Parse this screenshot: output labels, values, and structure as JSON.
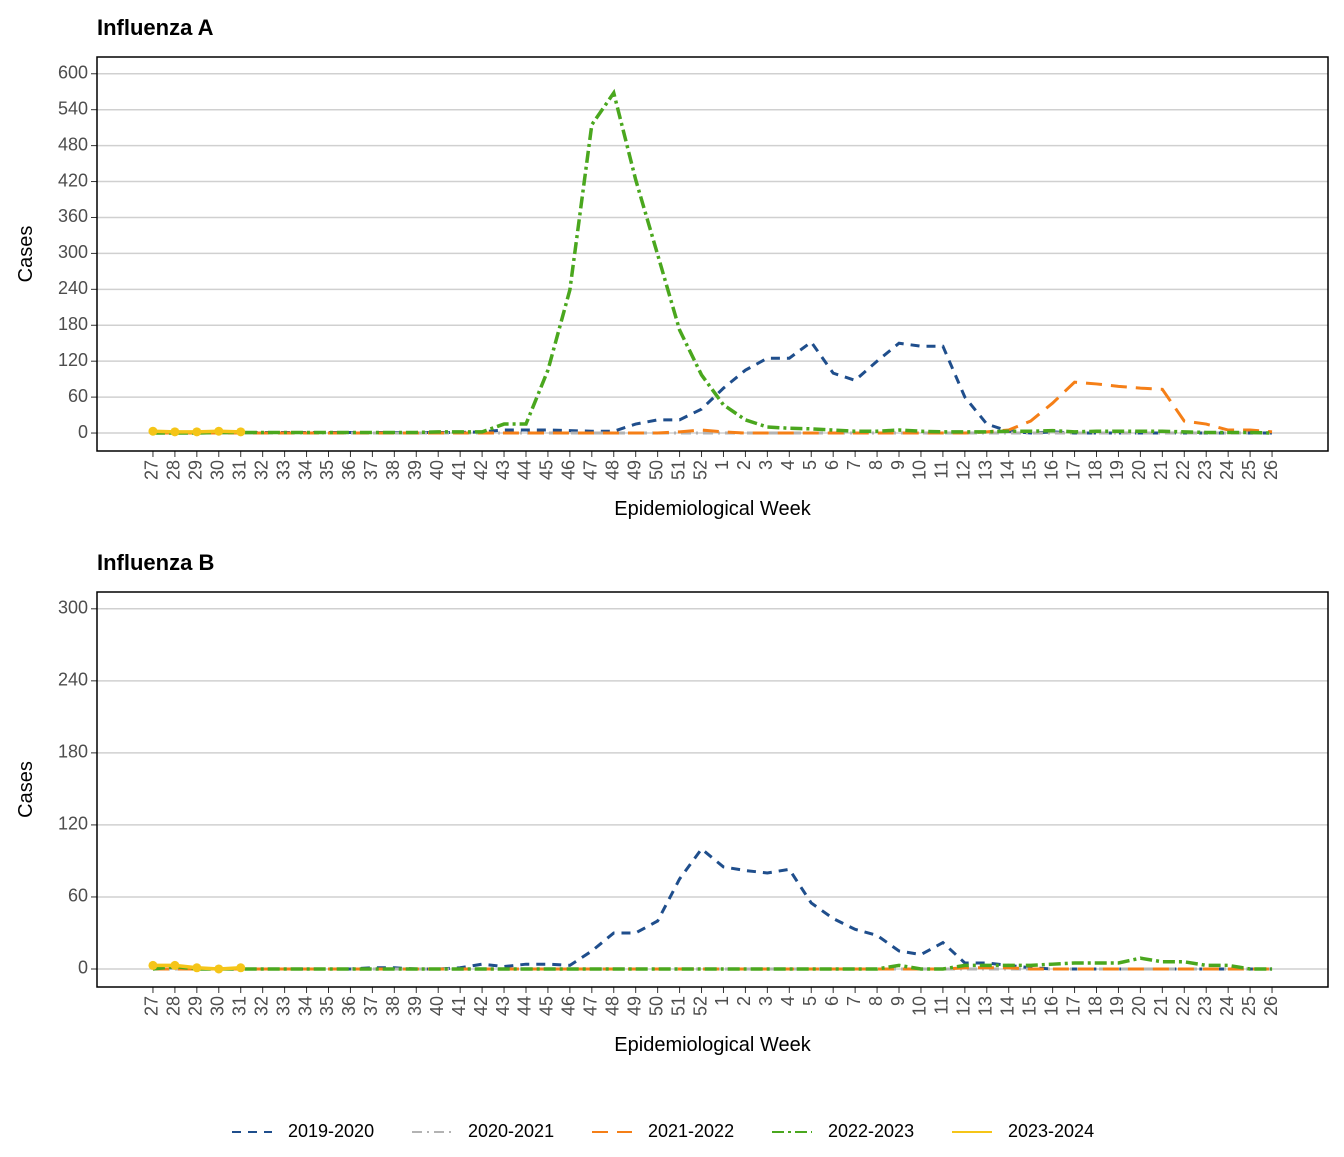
{
  "chart_data": [
    {
      "type": "line",
      "title": "Influenza A",
      "x_label": "Epidemiological Week",
      "y_label": "Cases",
      "categories": [
        "27",
        "28",
        "29",
        "30",
        "31",
        "32",
        "33",
        "34",
        "35",
        "36",
        "37",
        "38",
        "39",
        "40",
        "41",
        "42",
        "43",
        "44",
        "45",
        "46",
        "47",
        "48",
        "49",
        "50",
        "51",
        "52",
        "1",
        "2",
        "3",
        "4",
        "5",
        "6",
        "7",
        "8",
        "9",
        "10",
        "11",
        "12",
        "13",
        "14",
        "15",
        "16",
        "17",
        "18",
        "19",
        "20",
        "21",
        "22",
        "23",
        "24",
        "25",
        "26"
      ],
      "ylim": [
        -30,
        628
      ],
      "yticks": [
        0,
        60,
        120,
        180,
        240,
        300,
        360,
        420,
        480,
        540,
        600
      ],
      "grid": true,
      "series": [
        {
          "name": "2019-2020",
          "color": "#1f4e8c",
          "values": [
            2,
            1,
            1,
            0,
            0,
            1,
            1,
            1,
            1,
            1,
            1,
            1,
            1,
            1,
            1,
            2,
            5,
            5,
            5,
            4,
            3,
            3,
            15,
            22,
            22,
            40,
            75,
            105,
            125,
            125,
            152,
            100,
            88,
            120,
            150,
            145,
            145,
            60,
            15,
            3,
            0,
            2,
            0,
            0,
            0,
            0,
            0,
            0,
            0,
            0,
            0,
            0
          ]
        },
        {
          "name": "2020-2021",
          "color": "#b3b3b3",
          "values": [
            0,
            0,
            0,
            0,
            0,
            0,
            0,
            0,
            0,
            0,
            0,
            0,
            0,
            0,
            0,
            0,
            0,
            0,
            0,
            0,
            0,
            0,
            0,
            0,
            0,
            0,
            0,
            0,
            0,
            0,
            0,
            0,
            0,
            0,
            0,
            0,
            0,
            0,
            0,
            0,
            0,
            0,
            0,
            0,
            0,
            0,
            0,
            0,
            0,
            0,
            0,
            0
          ]
        },
        {
          "name": "2021-2022",
          "color": "#f57f17",
          "values": [
            0,
            0,
            0,
            0,
            0,
            0,
            0,
            0,
            0,
            0,
            0,
            0,
            0,
            0,
            0,
            0,
            0,
            0,
            0,
            0,
            0,
            0,
            0,
            0,
            2,
            5,
            2,
            0,
            0,
            0,
            0,
            0,
            0,
            0,
            0,
            0,
            0,
            0,
            2,
            5,
            20,
            50,
            85,
            82,
            78,
            75,
            73,
            20,
            15,
            5,
            5,
            2
          ]
        },
        {
          "name": "2022-2023",
          "color": "#4aa71e",
          "values": [
            0,
            0,
            0,
            1,
            1,
            1,
            1,
            1,
            1,
            1,
            1,
            1,
            1,
            2,
            2,
            2,
            15,
            15,
            105,
            239,
            515,
            568,
            423,
            298,
            172,
            97,
            47,
            22,
            10,
            8,
            7,
            5,
            3,
            3,
            5,
            3,
            2,
            2,
            2,
            3,
            3,
            4,
            2,
            3,
            3,
            3,
            3,
            2,
            1,
            1,
            1,
            0
          ]
        },
        {
          "name": "2023-2024",
          "color": "#f5c518",
          "markers": true,
          "values": [
            3,
            2,
            2,
            3,
            2,
            null,
            null,
            null,
            null,
            null,
            null,
            null,
            null,
            null,
            null,
            null,
            null,
            null,
            null,
            null,
            null,
            null,
            null,
            null,
            null,
            null,
            null,
            null,
            null,
            null,
            null,
            null,
            null,
            null,
            null,
            null,
            null,
            null,
            null,
            null,
            null,
            null,
            null,
            null,
            null,
            null,
            null,
            null,
            null,
            null,
            null,
            null
          ]
        }
      ]
    },
    {
      "type": "line",
      "title": "Influenza B",
      "x_label": "Epidemiological Week",
      "y_label": "Cases",
      "categories": [
        "27",
        "28",
        "29",
        "30",
        "31",
        "32",
        "33",
        "34",
        "35",
        "36",
        "37",
        "38",
        "39",
        "40",
        "41",
        "42",
        "43",
        "44",
        "45",
        "46",
        "47",
        "48",
        "49",
        "50",
        "51",
        "52",
        "1",
        "2",
        "3",
        "4",
        "5",
        "6",
        "7",
        "8",
        "9",
        "10",
        "11",
        "12",
        "13",
        "14",
        "15",
        "16",
        "17",
        "18",
        "19",
        "20",
        "21",
        "22",
        "23",
        "24",
        "25",
        "26"
      ],
      "ylim": [
        -15,
        314
      ],
      "yticks": [
        0,
        60,
        120,
        180,
        240,
        300
      ],
      "grid": true,
      "series": [
        {
          "name": "2019-2020",
          "color": "#1f4e8c",
          "values": [
            1,
            1,
            0,
            0,
            0,
            0,
            0,
            0,
            0,
            0,
            1,
            1,
            0,
            0,
            1,
            4,
            2,
            4,
            4,
            3,
            15,
            30,
            30,
            40,
            75,
            100,
            85,
            82,
            80,
            83,
            55,
            42,
            33,
            28,
            15,
            12,
            22,
            5,
            5,
            3,
            1,
            0,
            0,
            0,
            0,
            0,
            0,
            0,
            0,
            0,
            0,
            0
          ]
        },
        {
          "name": "2020-2021",
          "color": "#b3b3b3",
          "values": [
            0,
            0,
            0,
            0,
            0,
            0,
            0,
            0,
            0,
            0,
            0,
            0,
            0,
            0,
            0,
            0,
            0,
            0,
            0,
            0,
            0,
            0,
            0,
            0,
            0,
            0,
            0,
            0,
            0,
            0,
            0,
            0,
            0,
            0,
            0,
            0,
            0,
            0,
            0,
            0,
            0,
            0,
            0,
            0,
            0,
            0,
            0,
            0,
            0,
            0,
            0,
            0
          ]
        },
        {
          "name": "2021-2022",
          "color": "#f57f17",
          "values": [
            0,
            0,
            0,
            0,
            0,
            0,
            0,
            0,
            0,
            0,
            0,
            0,
            0,
            0,
            0,
            0,
            0,
            0,
            0,
            0,
            0,
            0,
            0,
            0,
            0,
            0,
            0,
            0,
            0,
            0,
            0,
            0,
            0,
            0,
            0,
            0,
            0,
            1,
            1,
            1,
            0,
            0,
            0,
            0,
            0,
            0,
            0,
            0,
            0,
            0,
            0,
            0
          ]
        },
        {
          "name": "2022-2023",
          "color": "#4aa71e",
          "values": [
            0,
            2,
            0,
            0,
            0,
            0,
            0,
            0,
            0,
            0,
            0,
            0,
            0,
            0,
            0,
            0,
            0,
            0,
            0,
            0,
            0,
            0,
            0,
            0,
            0,
            0,
            0,
            0,
            0,
            0,
            0,
            0,
            0,
            0,
            3,
            0,
            0,
            3,
            3,
            3,
            3,
            4,
            5,
            5,
            5,
            9,
            6,
            6,
            3,
            3,
            0,
            0
          ]
        },
        {
          "name": "2023-2024",
          "color": "#f5c518",
          "markers": true,
          "values": [
            3,
            3,
            1,
            0,
            1,
            null,
            null,
            null,
            null,
            null,
            null,
            null,
            null,
            null,
            null,
            null,
            null,
            null,
            null,
            null,
            null,
            null,
            null,
            null,
            null,
            null,
            null,
            null,
            null,
            null,
            null,
            null,
            null,
            null,
            null,
            null,
            null,
            null,
            null,
            null,
            null,
            null,
            null,
            null,
            null,
            null,
            null,
            null,
            null,
            null,
            null,
            null
          ]
        }
      ]
    }
  ]
}
